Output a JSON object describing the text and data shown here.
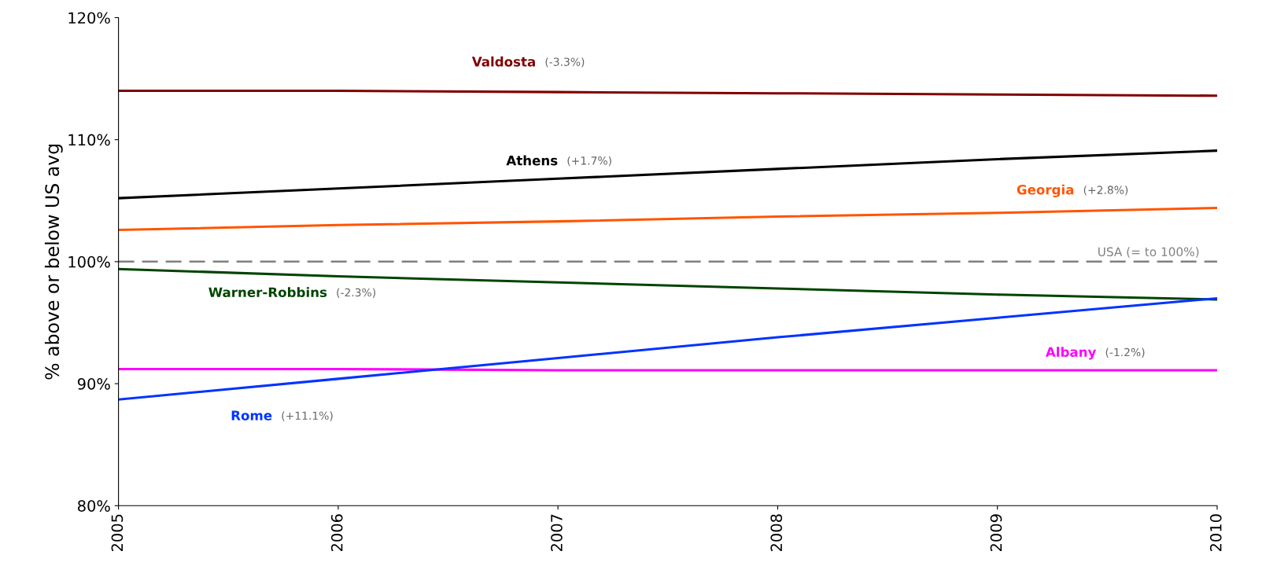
{
  "chart_data": {
    "type": "line",
    "ylabel": "% above or below US avg",
    "x": [
      2005,
      2006,
      2007,
      2008,
      2009,
      2010
    ],
    "xlim": [
      2005,
      2010
    ],
    "xticks": [
      2005,
      2006,
      2007,
      2008,
      2009,
      2010
    ],
    "ylim": [
      80,
      120
    ],
    "yticks": [
      {
        "value": 80,
        "label": "80%"
      },
      {
        "value": 90,
        "label": "90%"
      },
      {
        "value": 100,
        "label": "100%"
      },
      {
        "value": 110,
        "label": "110%"
      },
      {
        "value": 120,
        "label": "120%"
      }
    ],
    "grid": false,
    "legend": false,
    "marker": "none",
    "line_style": "solid",
    "series": [
      {
        "name": "Valdosta",
        "color": "#800000",
        "values": [
          114.0,
          114.0,
          113.9,
          113.8,
          113.7,
          113.6
        ]
      },
      {
        "name": "Athens",
        "color": "#000000",
        "values": [
          105.2,
          106.0,
          106.8,
          107.6,
          108.4,
          109.1
        ]
      },
      {
        "name": "Georgia",
        "color": "#ff5500",
        "values": [
          102.6,
          103.0,
          103.3,
          103.7,
          104.0,
          104.4
        ]
      },
      {
        "name": "Warner-Robbins",
        "color": "#004400",
        "values": [
          99.4,
          98.8,
          98.3,
          97.8,
          97.3,
          96.9
        ]
      },
      {
        "name": "Albany",
        "color": "#ff00ff",
        "values": [
          91.2,
          91.2,
          91.1,
          91.1,
          91.1,
          91.1
        ]
      },
      {
        "name": "Rome",
        "color": "#0033ff",
        "values": [
          88.7,
          90.4,
          92.1,
          93.8,
          95.4,
          97.0
        ]
      }
    ],
    "annotations": [
      "(-3.3%)",
      "(+1.7%)",
      "(+2.8%)",
      "(-2.3%)",
      "(-1.2%)",
      "(+11.1%)"
    ],
    "ref_lines": [
      {
        "axis": "y",
        "value": 100,
        "label": "USA (= to 100%)",
        "color": "#808080",
        "line_style": "dashed"
      }
    ]
  }
}
